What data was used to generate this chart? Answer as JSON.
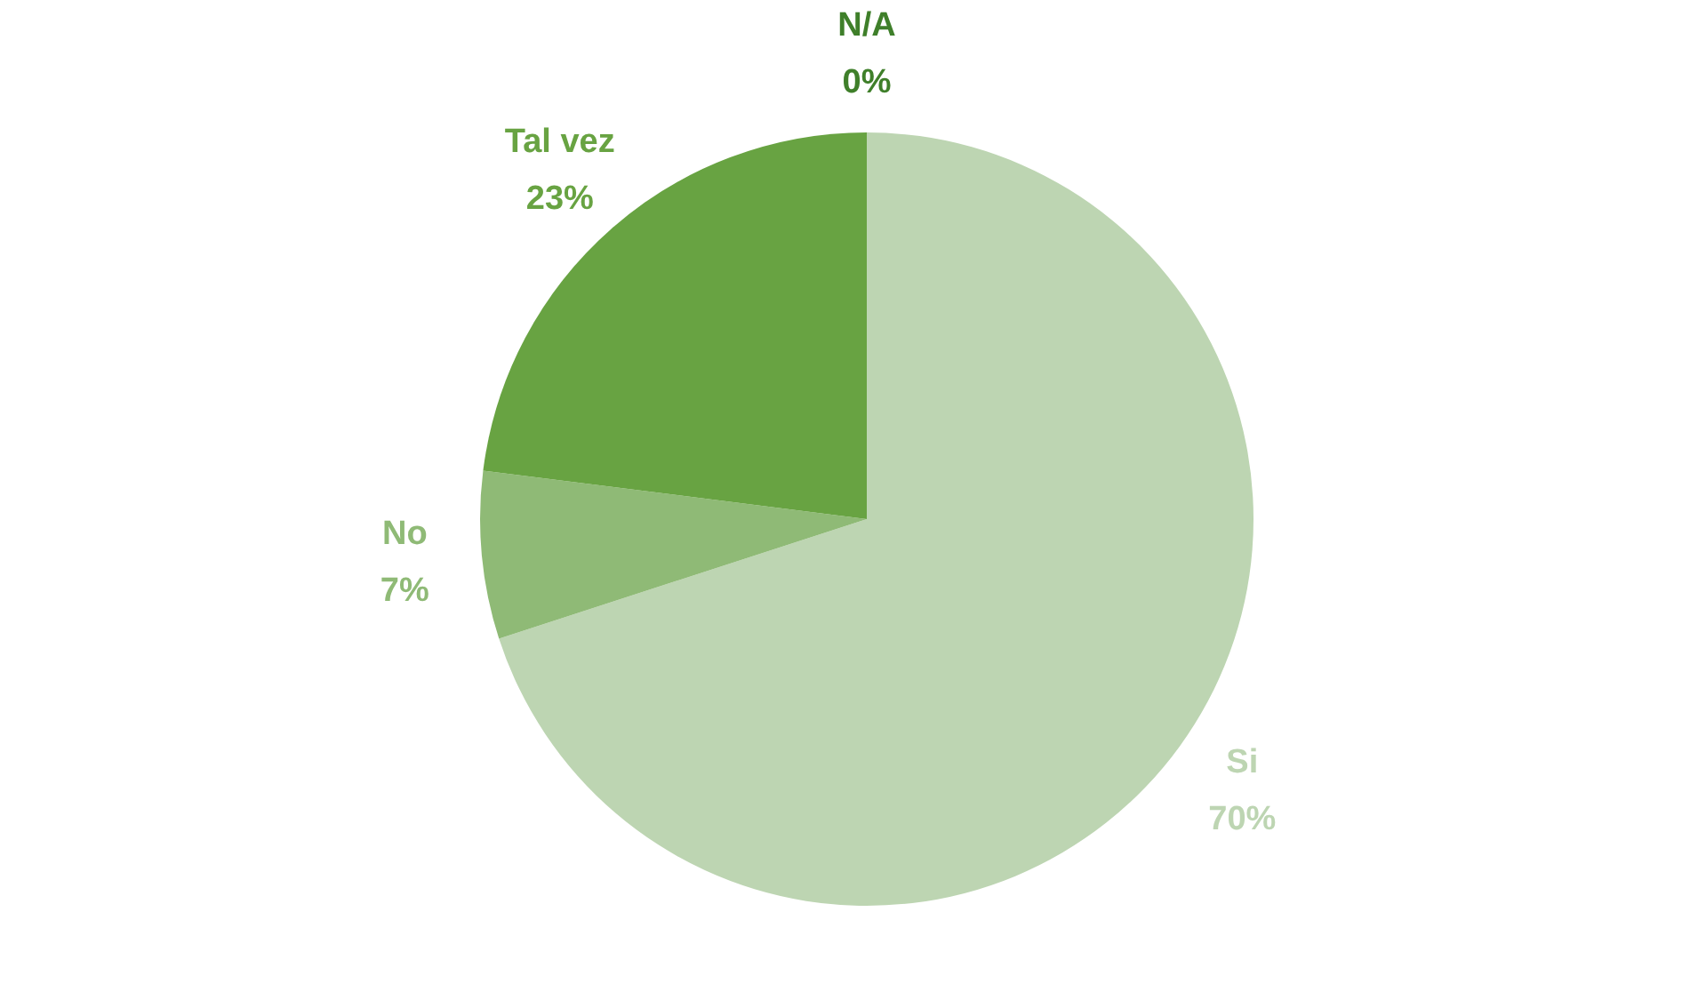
{
  "chart_data": {
    "type": "pie",
    "categories": [
      "Si",
      "No",
      "Tal vez",
      "N/A"
    ],
    "values": [
      70,
      7,
      23,
      0
    ],
    "colors": [
      "#bdd5b2",
      "#8fba76",
      "#68a342",
      "#3f7f2a"
    ],
    "value_labels": [
      "70%",
      "7%",
      "23%",
      "0%"
    ],
    "legend": false
  }
}
